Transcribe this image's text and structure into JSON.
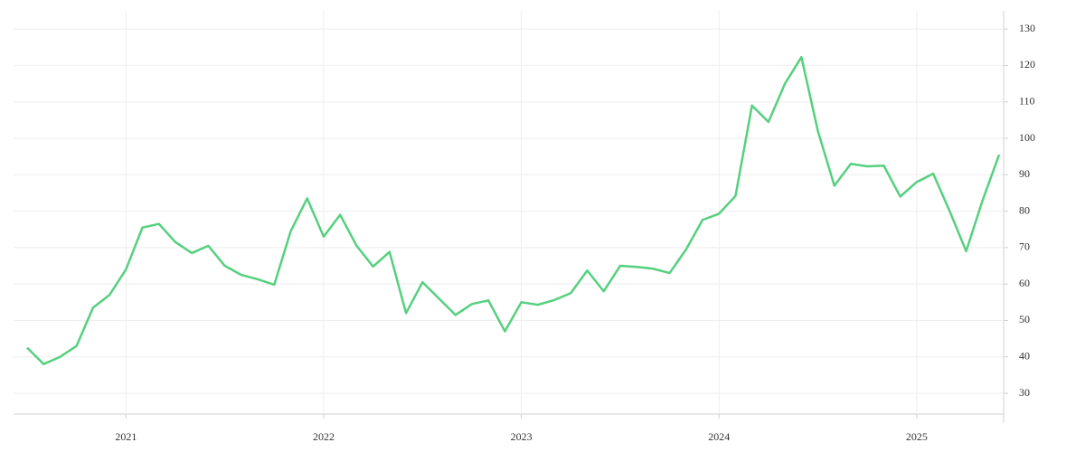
{
  "chart_data": {
    "type": "line",
    "categories": [
      null,
      null,
      null,
      null,
      null,
      null,
      "2021",
      null,
      null,
      null,
      null,
      null,
      null,
      null,
      null,
      null,
      null,
      null,
      "2022",
      null,
      null,
      null,
      null,
      null,
      null,
      null,
      null,
      null,
      null,
      null,
      "2023",
      null,
      null,
      null,
      null,
      null,
      null,
      null,
      null,
      null,
      null,
      null,
      "2024",
      null,
      null,
      null,
      null,
      null,
      null,
      null,
      null,
      null,
      null,
      null,
      "2025",
      null,
      null,
      null,
      null,
      null
    ],
    "values": [
      42.5,
      38,
      40,
      43,
      53.5,
      57,
      64,
      75.5,
      76.5,
      71.5,
      68.5,
      70.5,
      65,
      62.5,
      61.3,
      59.8,
      74.5,
      83.5,
      73,
      79,
      70.5,
      64.8,
      68.8,
      52,
      60.5,
      56,
      51.5,
      54.5,
      55.5,
      47,
      55,
      54.3,
      55.6,
      57.5,
      63.7,
      58,
      65,
      64.7,
      64.2,
      63,
      69.5,
      77.6,
      79.3,
      84.2,
      109,
      104.5,
      115,
      122.3,
      102,
      87,
      93,
      92.3,
      92.5,
      84,
      88,
      90.3,
      80,
      69,
      83,
      95.5
    ],
    "color": "#55d07e",
    "ylim": [
      24.3,
      135
    ],
    "yticks": [
      30,
      40,
      50,
      60,
      70,
      80,
      90,
      100,
      110,
      120,
      130
    ],
    "grid": true,
    "y_axis_side": "right"
  }
}
